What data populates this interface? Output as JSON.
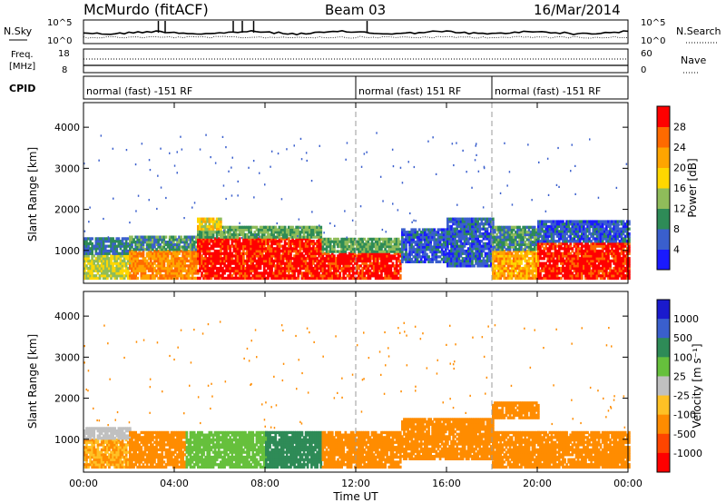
{
  "header": {
    "station": "McMurdo (fitACF)",
    "beam": "Beam 03",
    "date": "16/Mar/2014"
  },
  "noise_panel": {
    "left_label": "N.Sky",
    "right_label": "N.Search",
    "left_ticks": [
      "10^5",
      "10^0"
    ],
    "right_ticks": [
      "10^5",
      "10^0"
    ]
  },
  "freq_panel": {
    "left_label_line1": "Freq.",
    "left_label_line2": "[MHz]",
    "right_label": "Nave",
    "left_ticks": [
      "18",
      "8"
    ],
    "right_ticks": [
      "60",
      "0"
    ]
  },
  "cpid_panel": {
    "label": "CPID",
    "segments": [
      {
        "text": "normal (fast) -151 RF",
        "start_hour": 0,
        "end_hour": 12
      },
      {
        "text": "normal (fast) 151 RF",
        "start_hour": 12,
        "end_hour": 18
      },
      {
        "text": "normal (fast) -151 RF",
        "start_hour": 18,
        "end_hour": 24
      }
    ]
  },
  "time_axis": {
    "label": "Time UT",
    "ticks": [
      "00:00",
      "04:00",
      "08:00",
      "12:00",
      "16:00",
      "20:00",
      "00:00"
    ],
    "tick_hours": [
      0,
      4,
      8,
      12,
      16,
      20,
      24
    ]
  },
  "power_panel": {
    "ylabel": "Slant Range [km]",
    "yticks": [
      "1000",
      "2000",
      "3000",
      "4000"
    ],
    "ytick_values": [
      1000,
      2000,
      3000,
      4000
    ],
    "colorbar_label": "Power [dB]",
    "colorbar_ticks": [
      "4",
      "8",
      "12",
      "16",
      "20",
      "24",
      "28"
    ],
    "colors": [
      "#1a1aff",
      "#3a5fcd",
      "#2e8b57",
      "#8fbc5a",
      "#ffd700",
      "#ffa500",
      "#ff6a00",
      "#ff0000"
    ]
  },
  "velocity_panel": {
    "ylabel": "Slant Range [km]",
    "yticks": [
      "1000",
      "2000",
      "3000",
      "4000"
    ],
    "ytick_values": [
      1000,
      2000,
      3000,
      4000
    ],
    "colorbar_label": "Velocity [m s⁻¹]",
    "colorbar_ticks": [
      "1000",
      "500",
      "100",
      "25",
      "-25",
      "-100",
      "-500",
      "-1000"
    ],
    "colors": [
      "#1a1acd",
      "#3a5fcd",
      "#2e8b57",
      "#66c03c",
      "#c0c0c0",
      "#ffc125",
      "#ff8c00",
      "#ff4500",
      "#ff0000"
    ]
  },
  "chart_data": {
    "type": "heatmap",
    "x_unit": "hours UT",
    "xlim": [
      0,
      24
    ],
    "ylim": [
      200,
      4600
    ],
    "y_unit": "km",
    "power_regions": [
      {
        "x0": 0.0,
        "x1": 2.0,
        "y0": 300,
        "y1": 900,
        "value": 16
      },
      {
        "x0": 0.0,
        "x1": 2.0,
        "y0": 900,
        "y1": 1300,
        "value": 8
      },
      {
        "x0": 2.0,
        "x1": 5.0,
        "y0": 300,
        "y1": 1000,
        "value": 24
      },
      {
        "x0": 2.0,
        "x1": 5.0,
        "y0": 1000,
        "y1": 1350,
        "value": 10
      },
      {
        "x0": 5.0,
        "x1": 10.5,
        "y0": 300,
        "y1": 1300,
        "value": 30
      },
      {
        "x0": 5.0,
        "x1": 10.5,
        "y0": 1300,
        "y1": 1600,
        "value": 12
      },
      {
        "x0": 5.0,
        "x1": 6.0,
        "y0": 1500,
        "y1": 1800,
        "value": 18
      },
      {
        "x0": 10.5,
        "x1": 14.0,
        "y0": 300,
        "y1": 950,
        "value": 30
      },
      {
        "x0": 10.5,
        "x1": 14.0,
        "y0": 950,
        "y1": 1300,
        "value": 12
      },
      {
        "x0": 14.0,
        "x1": 16.0,
        "y0": 700,
        "y1": 1500,
        "value": 6
      },
      {
        "x0": 16.0,
        "x1": 18.0,
        "y0": 600,
        "y1": 1800,
        "value": 6
      },
      {
        "x0": 18.0,
        "x1": 20.0,
        "y0": 300,
        "y1": 1000,
        "value": 22
      },
      {
        "x0": 18.0,
        "x1": 20.0,
        "y0": 1000,
        "y1": 1600,
        "value": 10
      },
      {
        "x0": 20.0,
        "x1": 24.0,
        "y0": 300,
        "y1": 1200,
        "value": 30
      },
      {
        "x0": 20.0,
        "x1": 24.0,
        "y0": 1200,
        "y1": 1700,
        "value": 6
      }
    ],
    "velocity_regions": [
      {
        "x0": 0.0,
        "x1": 2.0,
        "y0": 300,
        "y1": 1000,
        "value": -100
      },
      {
        "x0": 0.0,
        "x1": 2.0,
        "y0": 1000,
        "y1": 1300,
        "value": 0
      },
      {
        "x0": 2.0,
        "x1": 4.5,
        "y0": 300,
        "y1": 1200,
        "value": -120
      },
      {
        "x0": 4.5,
        "x1": 8.0,
        "y0": 300,
        "y1": 1200,
        "value": 80
      },
      {
        "x0": 8.0,
        "x1": 10.5,
        "y0": 300,
        "y1": 1200,
        "value": 150
      },
      {
        "x0": 10.5,
        "x1": 14.0,
        "y0": 300,
        "y1": 1200,
        "value": -150
      },
      {
        "x0": 14.0,
        "x1": 18.0,
        "y0": 500,
        "y1": 1500,
        "value": -150
      },
      {
        "x0": 18.0,
        "x1": 20.0,
        "y0": 300,
        "y1": 1200,
        "value": -200
      },
      {
        "x0": 18.0,
        "x1": 20.0,
        "y0": 1500,
        "y1": 1900,
        "value": -300
      },
      {
        "x0": 20.0,
        "x1": 24.0,
        "y0": 300,
        "y1": 1200,
        "value": -200
      }
    ]
  }
}
